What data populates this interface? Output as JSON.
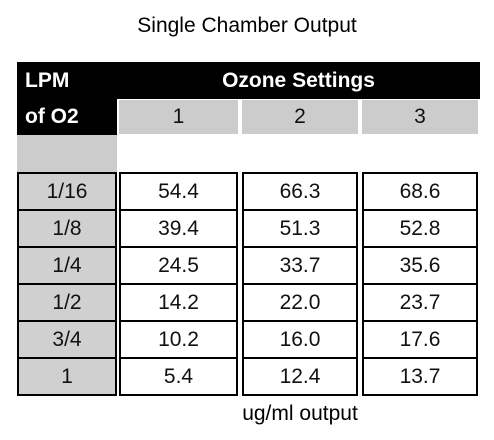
{
  "title": "Single Chamber Output",
  "table": {
    "header": [
      "LPM",
      "Ozone Settings"
    ],
    "subheader": [
      "of O2",
      "1",
      "2",
      "3"
    ],
    "rows": [
      [
        "1/16",
        "54.4",
        "66.3",
        "68.6"
      ],
      [
        "1/8",
        "39.4",
        "51.3",
        "52.8"
      ],
      [
        "1/4",
        "24.5",
        "33.7",
        "35.6"
      ],
      [
        "1/2",
        "14.2",
        "22.0",
        "23.7"
      ],
      [
        "3/4",
        "10.2",
        "16.0",
        "17.6"
      ],
      [
        "1",
        "5.4",
        "12.4",
        "13.7"
      ]
    ]
  },
  "footer": "ug/ml output"
}
